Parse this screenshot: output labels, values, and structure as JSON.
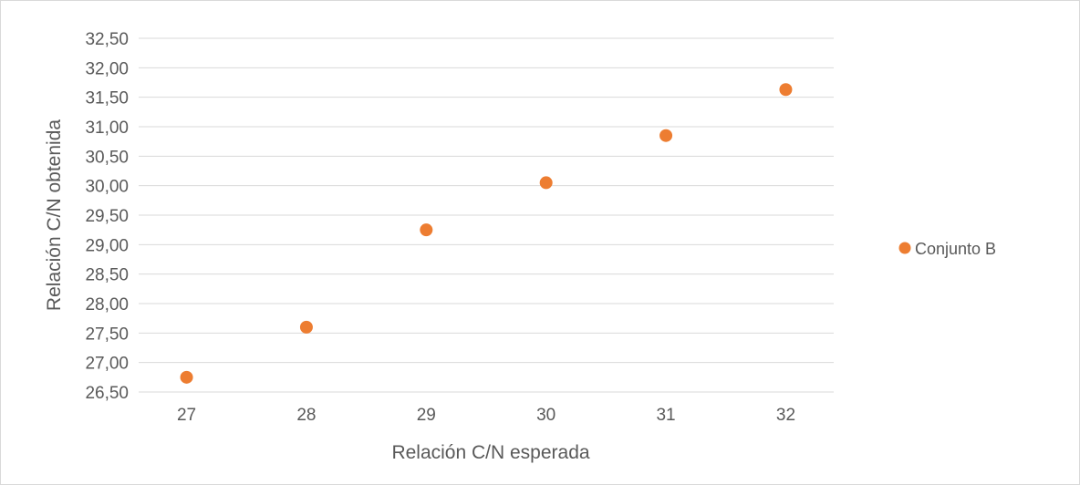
{
  "chart_data": {
    "type": "scatter",
    "xlabel": "Relación C/N esperada",
    "ylabel": "Relación C/N obtenida",
    "xlim": [
      26.6,
      32.4
    ],
    "ylim": [
      26.5,
      32.5
    ],
    "x_ticks": [
      "27",
      "28",
      "29",
      "30",
      "31",
      "32"
    ],
    "y_ticks": [
      "26,50",
      "27,00",
      "27,50",
      "28,00",
      "28,50",
      "29,00",
      "29,50",
      "30,00",
      "30,50",
      "31,00",
      "31,50",
      "32,00",
      "32,50"
    ],
    "grid": "horizontal",
    "legend_position": "right",
    "series": [
      {
        "name": "Conjunto B",
        "color": "#ed7d31",
        "points": [
          {
            "x": 27,
            "y": 26.75
          },
          {
            "x": 28,
            "y": 27.6
          },
          {
            "x": 29,
            "y": 29.25
          },
          {
            "x": 30,
            "y": 30.05
          },
          {
            "x": 31,
            "y": 30.85
          },
          {
            "x": 32,
            "y": 31.63
          }
        ]
      }
    ]
  }
}
